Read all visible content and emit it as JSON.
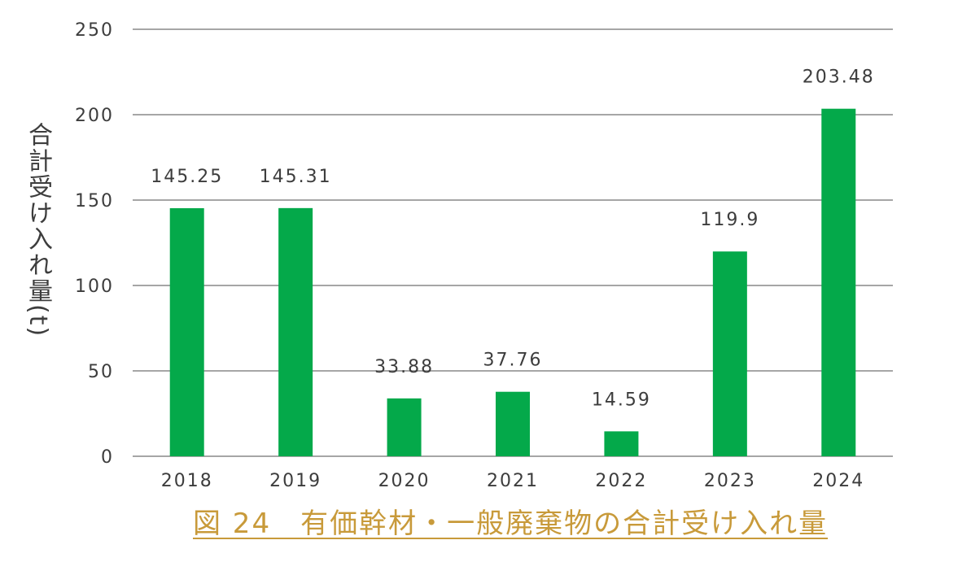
{
  "chart_data": {
    "type": "bar",
    "categories": [
      "2018",
      "2019",
      "2020",
      "2021",
      "2022",
      "2023",
      "2024"
    ],
    "values": [
      145.25,
      145.31,
      33.88,
      37.76,
      14.59,
      119.9,
      203.48
    ],
    "data_labels": [
      "145.25",
      "145.31",
      "33.88",
      "37.76",
      "14.59",
      "119.9",
      "203.48"
    ],
    "ylabel": "合計受け入れ量(t)",
    "ylim": [
      0,
      250
    ],
    "yticks": [
      0,
      50,
      100,
      150,
      200,
      250
    ],
    "ytick_labels": [
      "0",
      "50",
      "100",
      "150",
      "200",
      "250"
    ],
    "grid": true,
    "legend": "none",
    "bar_color": "#04a94a",
    "grid_color": "#a6a6a6",
    "axis_color": "#a6a6a6",
    "text_color": "#3d3d3d"
  },
  "caption": "図 24　有価幹材・一般廃棄物の合計受け入れ量",
  "caption_color": "#c89a3a"
}
